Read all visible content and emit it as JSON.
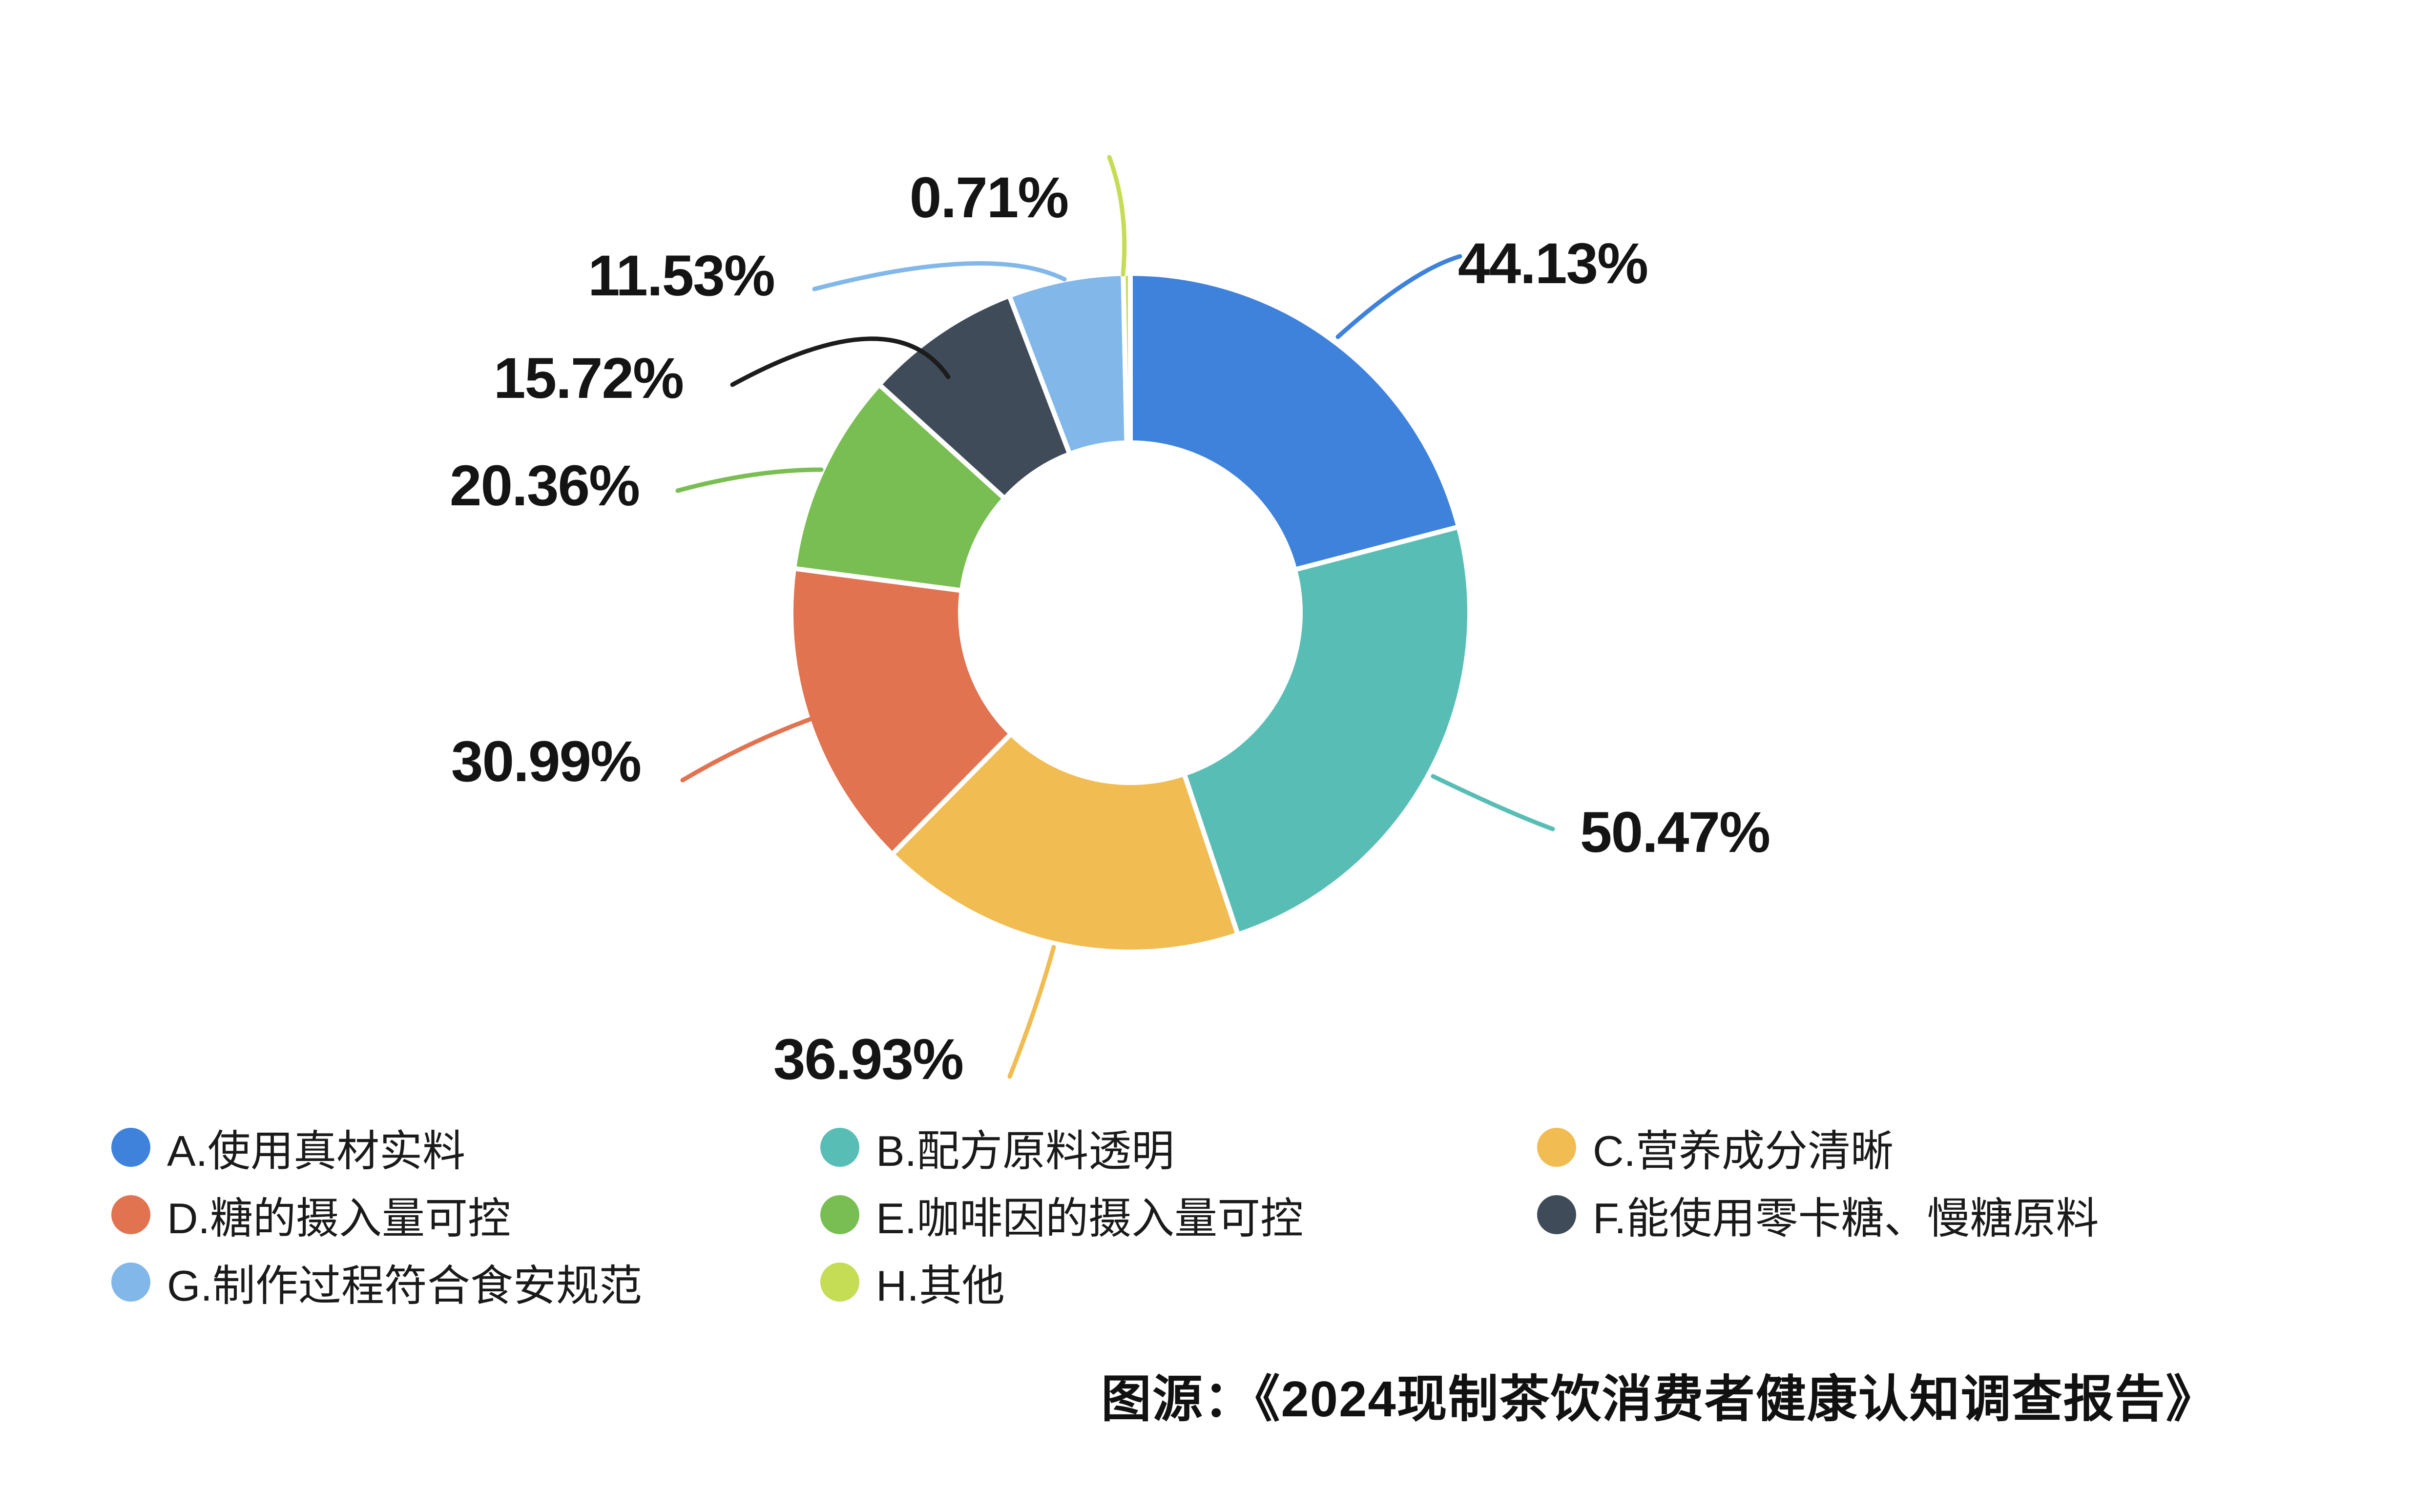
{
  "chart_data": {
    "type": "pie",
    "donut": true,
    "title": "",
    "legend_position": "bottom",
    "items": [
      {
        "id": "A",
        "legend_label": "A.使用真材实料",
        "value": 44.13,
        "pct_label": "44.13%",
        "color": "#3F82DB"
      },
      {
        "id": "B",
        "legend_label": "B.配方原料透明",
        "value": 50.47,
        "pct_label": "50.47%",
        "color": "#58BEB5"
      },
      {
        "id": "C",
        "legend_label": "C.营养成分清晰",
        "value": 36.93,
        "pct_label": "36.93%",
        "color": "#F1BC52"
      },
      {
        "id": "D",
        "legend_label": "D.糖的摄入量可控",
        "value": 30.99,
        "pct_label": "30.99%",
        "color": "#E17350"
      },
      {
        "id": "E",
        "legend_label": "E.咖啡因的摄入量可控",
        "value": 20.36,
        "pct_label": "20.36%",
        "color": "#79BE52"
      },
      {
        "id": "F",
        "legend_label": "F.能使用零卡糖、慢糖原料",
        "value": 15.72,
        "pct_label": "15.72%",
        "color": "#3F4B59"
      },
      {
        "id": "G",
        "legend_label": "G.制作过程符合食安规范",
        "value": 11.53,
        "pct_label": "11.53%",
        "color": "#82B7EA"
      },
      {
        "id": "H",
        "legend_label": "H.其他",
        "value": 0.71,
        "pct_label": "0.71%",
        "color": "#C5DC55"
      }
    ]
  },
  "source_caption": "图源：《2024现制茶饮消费者健康认知调查报告》"
}
